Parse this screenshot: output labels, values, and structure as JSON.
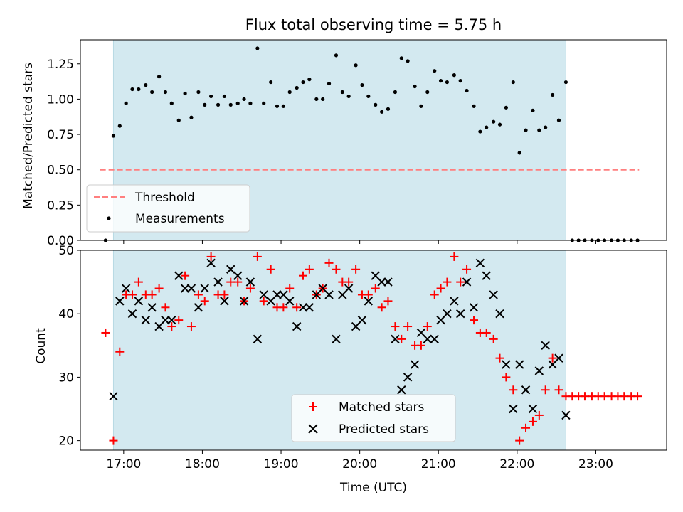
{
  "chart_data": [
    {
      "type": "scatter",
      "title": "Flux total observing time = 5.75 h",
      "xlabel": "",
      "ylabel": "Matched/Predicted stars",
      "xlim": [
        16.45,
        23.9
      ],
      "ylim": [
        0,
        1.42
      ],
      "yticks": [
        "0.00",
        "0.25",
        "0.50",
        "0.75",
        "1.00",
        "1.25"
      ],
      "ytick_values": [
        0,
        0.25,
        0.5,
        0.75,
        1.0,
        1.25
      ],
      "shaded_interval": [
        16.87,
        22.62
      ],
      "threshold": {
        "name": "Threshold",
        "value": 0.5,
        "x_range": [
          16.7,
          23.55
        ],
        "color": "#ff7f7f"
      },
      "legend": {
        "position": "lower-left",
        "entries": [
          "Threshold",
          "Measurements"
        ]
      },
      "series": [
        {
          "name": "Measurements",
          "color": "#000000",
          "marker": "dot",
          "x": [
            16.77,
            16.87,
            16.95,
            17.03,
            17.11,
            17.19,
            17.28,
            17.36,
            17.45,
            17.53,
            17.61,
            17.7,
            17.78,
            17.86,
            17.95,
            18.03,
            18.11,
            18.2,
            18.28,
            18.36,
            18.45,
            18.53,
            18.61,
            18.7,
            18.78,
            18.87,
            18.95,
            19.03,
            19.11,
            19.2,
            19.28,
            19.36,
            19.45,
            19.53,
            19.61,
            19.7,
            19.78,
            19.86,
            19.95,
            20.03,
            20.11,
            20.2,
            20.28,
            20.36,
            20.45,
            20.53,
            20.61,
            20.7,
            20.78,
            20.86,
            20.95,
            21.03,
            21.11,
            21.2,
            21.28,
            21.36,
            21.45,
            21.53,
            21.61,
            21.7,
            21.78,
            21.86,
            21.95,
            22.03,
            22.11,
            22.2,
            22.28,
            22.36,
            22.45,
            22.53,
            22.62,
            22.7,
            22.78,
            22.86,
            22.95,
            23.03,
            23.11,
            23.2,
            23.28,
            23.36,
            23.45,
            23.53
          ],
          "y": [
            0.0,
            0.74,
            0.81,
            0.97,
            1.07,
            1.07,
            1.1,
            1.05,
            1.16,
            1.05,
            0.97,
            0.85,
            1.04,
            0.87,
            1.05,
            0.96,
            1.02,
            0.96,
            1.02,
            0.96,
            0.97,
            1.0,
            0.97,
            1.36,
            0.97,
            1.12,
            0.95,
            0.95,
            1.05,
            1.08,
            1.12,
            1.14,
            1.0,
            1.0,
            1.11,
            1.31,
            1.05,
            1.02,
            1.24,
            1.1,
            1.02,
            0.96,
            0.91,
            0.93,
            1.05,
            1.29,
            1.27,
            1.09,
            0.95,
            1.05,
            1.2,
            1.13,
            1.12,
            1.17,
            1.13,
            1.06,
            0.95,
            0.77,
            0.8,
            0.84,
            0.82,
            0.94,
            1.12,
            0.62,
            0.78,
            0.92,
            0.78,
            0.8,
            1.03,
            0.85,
            1.12,
            0.0,
            0.0,
            0.0,
            0.0,
            0.0,
            0.0,
            0.0,
            0.0,
            0.0,
            0.0,
            0.0
          ]
        }
      ]
    },
    {
      "type": "scatter",
      "title": "",
      "xlabel": "Time (UTC)",
      "ylabel": "Count",
      "xlim": [
        16.45,
        23.9
      ],
      "ylim": [
        18.5,
        50
      ],
      "yticks": [
        "20",
        "30",
        "40",
        "50"
      ],
      "ytick_values": [
        20,
        30,
        40,
        50
      ],
      "xticks": [
        "17:00",
        "18:00",
        "19:00",
        "20:00",
        "21:00",
        "22:00",
        "23:00"
      ],
      "xtick_values": [
        17,
        18,
        19,
        20,
        21,
        22,
        23
      ],
      "shaded_interval": [
        16.87,
        22.62
      ],
      "legend": {
        "position": "lower-center",
        "entries": [
          "Matched stars",
          "Predicted stars"
        ]
      },
      "series": [
        {
          "name": "Matched stars",
          "color": "#ff0000",
          "marker": "plus",
          "x": [
            16.77,
            16.87,
            16.95,
            17.03,
            17.11,
            17.19,
            17.28,
            17.36,
            17.45,
            17.53,
            17.61,
            17.7,
            17.78,
            17.86,
            17.95,
            18.03,
            18.11,
            18.2,
            18.28,
            18.36,
            18.45,
            18.53,
            18.61,
            18.7,
            18.78,
            18.87,
            18.95,
            19.03,
            19.11,
            19.2,
            19.28,
            19.36,
            19.45,
            19.53,
            19.61,
            19.7,
            19.78,
            19.86,
            19.95,
            20.03,
            20.11,
            20.2,
            20.28,
            20.36,
            20.45,
            20.53,
            20.61,
            20.7,
            20.78,
            20.86,
            20.95,
            21.03,
            21.11,
            21.2,
            21.28,
            21.36,
            21.45,
            21.53,
            21.61,
            21.7,
            21.78,
            21.86,
            21.95,
            22.03,
            22.11,
            22.2,
            22.28,
            22.36,
            22.45,
            22.53,
            22.62,
            22.7,
            22.78,
            22.86,
            22.95,
            23.03,
            23.11,
            23.2,
            23.28,
            23.36,
            23.45,
            23.53
          ],
          "y": [
            37,
            20,
            34,
            43,
            43,
            45,
            43,
            43,
            44,
            41,
            38,
            39,
            46,
            38,
            43,
            42,
            49,
            43,
            43,
            45,
            45,
            42,
            44,
            49,
            42,
            47,
            41,
            41,
            44,
            41,
            46,
            47,
            43,
            44,
            48,
            47,
            45,
            45,
            47,
            43,
            43,
            44,
            41,
            42,
            38,
            36,
            38,
            35,
            35,
            38,
            43,
            44,
            45,
            49,
            45,
            47,
            39,
            37,
            37,
            36,
            33,
            30,
            28,
            20,
            22,
            23,
            24,
            28,
            33,
            28,
            27,
            27,
            27,
            27,
            27,
            27,
            27,
            27,
            27,
            27,
            27,
            27
          ]
        },
        {
          "name": "Predicted stars",
          "color": "#000000",
          "marker": "x",
          "x": [
            16.87,
            16.95,
            17.03,
            17.11,
            17.19,
            17.28,
            17.36,
            17.45,
            17.53,
            17.61,
            17.7,
            17.78,
            17.86,
            17.95,
            18.03,
            18.11,
            18.2,
            18.28,
            18.36,
            18.45,
            18.53,
            18.61,
            18.7,
            18.78,
            18.87,
            18.95,
            19.03,
            19.11,
            19.2,
            19.28,
            19.36,
            19.45,
            19.53,
            19.61,
            19.7,
            19.78,
            19.86,
            19.95,
            20.03,
            20.11,
            20.2,
            20.28,
            20.36,
            20.45,
            20.53,
            20.61,
            20.7,
            20.78,
            20.86,
            20.95,
            21.03,
            21.11,
            21.2,
            21.28,
            21.36,
            21.45,
            21.53,
            21.61,
            21.7,
            21.78,
            21.86,
            21.95,
            22.03,
            22.11,
            22.2,
            22.28,
            22.36,
            22.45,
            22.53,
            22.62
          ],
          "y": [
            27,
            42,
            44,
            40,
            42,
            39,
            41,
            38,
            39,
            39,
            46,
            44,
            44,
            41,
            44,
            48,
            45,
            42,
            47,
            46,
            42,
            45,
            36,
            43,
            42,
            43,
            43,
            42,
            38,
            41,
            41,
            43,
            44,
            43,
            36,
            43,
            44,
            38,
            39,
            42,
            46,
            45,
            45,
            36,
            28,
            30,
            32,
            37,
            36,
            36,
            39,
            40,
            42,
            40,
            45,
            41,
            48,
            46,
            43,
            40,
            32,
            25,
            32,
            28,
            25,
            31,
            35,
            32,
            33,
            24
          ]
        }
      ]
    }
  ]
}
